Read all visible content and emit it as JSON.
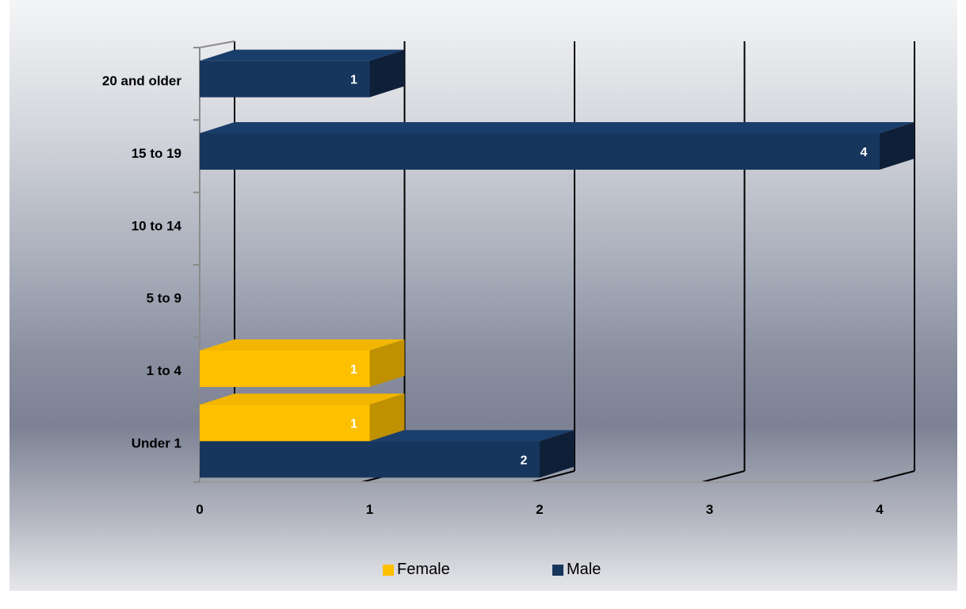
{
  "chart_data": {
    "type": "bar",
    "orientation": "horizontal",
    "title": "",
    "categories": [
      "Under 1",
      "1 to 4",
      "5 to 9",
      "10 to 14",
      "15 to 19",
      "20 and older"
    ],
    "series": [
      {
        "name": "Male",
        "color": "#17365d",
        "values": [
          2,
          null,
          null,
          null,
          4,
          1
        ]
      },
      {
        "name": "Female",
        "color": "#ffc000",
        "values": [
          1,
          1,
          null,
          null,
          null,
          null
        ]
      }
    ],
    "x_ticks": [
      "0",
      "1",
      "2",
      "3",
      "4"
    ],
    "xlim": [
      0,
      4
    ],
    "grid": true,
    "legend_position": "bottom",
    "data_labels": true,
    "three_d": true
  }
}
